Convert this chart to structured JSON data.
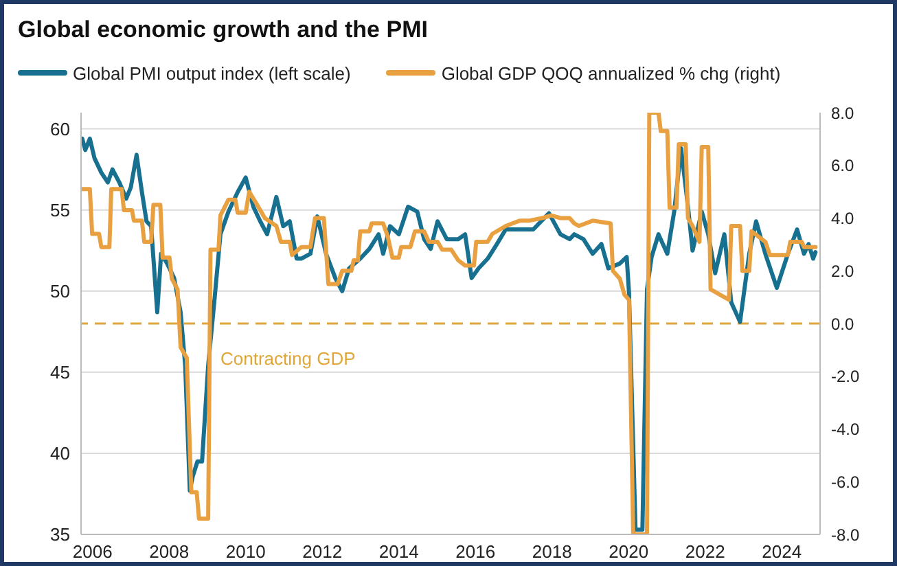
{
  "chart_data": {
    "type": "line",
    "title": "Global economic growth and the PMI",
    "legend": "top",
    "grid": "y",
    "marker": "none",
    "line_style": "solid",
    "xlim": [
      2005.7,
      2025
    ],
    "xticks": [
      2006,
      2008,
      2010,
      2012,
      2014,
      2016,
      2018,
      2020,
      2022,
      2024
    ],
    "ylim": [
      35,
      61
    ],
    "yticks": [
      35,
      40,
      45,
      50,
      55,
      60
    ],
    "y2lim": [
      -8,
      8
    ],
    "y2ticks": [
      {
        "value": -8,
        "label": "-8.0"
      },
      {
        "value": -6,
        "label": "-6.0"
      },
      {
        "value": -4,
        "label": "-4.0"
      },
      {
        "value": -2,
        "label": "-2.0"
      },
      {
        "value": 0,
        "label": "0.0"
      },
      {
        "value": 2,
        "label": "2.0"
      },
      {
        "value": 4,
        "label": "4.0"
      },
      {
        "value": 6,
        "label": "6.0"
      },
      {
        "value": 8,
        "label": "8.0"
      }
    ],
    "ref_lines": [
      {
        "axis": "y2",
        "value": 0,
        "label": "Contracting GDP",
        "color": "#e0a63a",
        "line_style": "dashed"
      }
    ],
    "series": [
      {
        "name": "Global PMI output index (left scale)",
        "color": "#17708f",
        "x": [
          2005.73,
          2005.81,
          2005.93,
          2006.05,
          2006.23,
          2006.4,
          2006.52,
          2006.7,
          2006.88,
          2007.0,
          2007.15,
          2007.29,
          2007.41,
          2007.53,
          2007.69,
          2007.79,
          2007.95,
          2008.13,
          2008.3,
          2008.42,
          2008.54,
          2008.62,
          2008.74,
          2008.86,
          2009.02,
          2009.19,
          2009.34,
          2009.55,
          2009.79,
          2010.0,
          2010.2,
          2010.38,
          2010.56,
          2010.8,
          2010.98,
          2011.15,
          2011.33,
          2011.45,
          2011.69,
          2011.87,
          2012.1,
          2012.34,
          2012.52,
          2012.7,
          2012.99,
          2013.23,
          2013.47,
          2013.59,
          2013.77,
          2014.0,
          2014.24,
          2014.48,
          2014.66,
          2014.83,
          2015.01,
          2015.25,
          2015.55,
          2015.73,
          2015.9,
          2016.08,
          2016.32,
          2016.56,
          2016.79,
          2017.15,
          2017.51,
          2017.92,
          2018.22,
          2018.46,
          2018.58,
          2018.82,
          2019.06,
          2019.29,
          2019.47,
          2019.77,
          2019.95,
          2020.01,
          2020.18,
          2020.36,
          2020.48,
          2020.6,
          2020.78,
          2021.01,
          2021.19,
          2021.37,
          2021.55,
          2021.67,
          2021.79,
          2021.91,
          2022.08,
          2022.26,
          2022.5,
          2022.68,
          2022.91,
          2023.15,
          2023.33,
          2023.57,
          2023.87,
          2024.16,
          2024.4,
          2024.58,
          2024.7,
          2024.82,
          2024.88
        ],
        "values": [
          59.4,
          58.7,
          59.4,
          58.2,
          57.3,
          56.7,
          57.5,
          56.7,
          55.7,
          56.4,
          58.4,
          56.1,
          54.3,
          54.0,
          48.7,
          52.3,
          51.7,
          50.8,
          48.7,
          45.4,
          37.7,
          38.6,
          39.5,
          39.5,
          45.4,
          49.6,
          53.5,
          54.9,
          56.1,
          57.0,
          55.2,
          54.3,
          53.5,
          55.8,
          54.0,
          54.3,
          52.0,
          52.0,
          52.3,
          54.6,
          52.3,
          50.8,
          50.0,
          51.4,
          52.0,
          52.6,
          53.5,
          52.3,
          54.0,
          53.5,
          55.2,
          54.9,
          53.2,
          52.6,
          54.3,
          53.2,
          53.2,
          53.5,
          50.8,
          51.4,
          52.0,
          52.9,
          53.8,
          53.8,
          53.8,
          54.8,
          53.5,
          53.2,
          53.5,
          53.2,
          52.3,
          52.9,
          51.4,
          51.7,
          52.1,
          49.9,
          35.3,
          35.3,
          50.1,
          52.1,
          53.5,
          52.3,
          54.9,
          58.8,
          55.2,
          52.5,
          53.7,
          54.9,
          53.5,
          51.1,
          53.5,
          49.3,
          48.1,
          52.3,
          54.3,
          52.3,
          50.2,
          52.3,
          53.8,
          52.3,
          52.9,
          52.0,
          52.4
        ]
      },
      {
        "name": "Global GDP QOQ annualized % chg (right)",
        "color": "#e8a040",
        "axis": "y2",
        "x": [
          2005.73,
          2005.93,
          2005.99,
          2006.17,
          2006.23,
          2006.44,
          2006.49,
          2006.76,
          2006.82,
          2007.03,
          2007.08,
          2007.29,
          2007.35,
          2007.53,
          2007.59,
          2007.77,
          2007.83,
          2008.01,
          2008.07,
          2008.22,
          2008.3,
          2008.46,
          2008.58,
          2008.72,
          2008.78,
          2009.02,
          2009.08,
          2009.29,
          2009.34,
          2009.55,
          2009.73,
          2009.79,
          2010.0,
          2010.09,
          2010.26,
          2010.5,
          2010.8,
          2010.92,
          2011.15,
          2011.21,
          2011.45,
          2011.69,
          2011.81,
          2012.04,
          2012.16,
          2012.4,
          2012.52,
          2012.76,
          2012.82,
          2012.93,
          2012.99,
          2013.23,
          2013.29,
          2013.59,
          2013.71,
          2013.83,
          2014.0,
          2014.06,
          2014.3,
          2014.42,
          2014.66,
          2014.78,
          2015.01,
          2015.13,
          2015.37,
          2015.55,
          2015.73,
          2015.96,
          2016.02,
          2016.32,
          2016.44,
          2016.79,
          2017.15,
          2017.39,
          2017.74,
          2017.98,
          2018.22,
          2018.46,
          2018.58,
          2018.7,
          2019.06,
          2019.53,
          2019.59,
          2019.77,
          2019.89,
          2020.01,
          2020.12,
          2020.48,
          2020.54,
          2020.78,
          2020.84,
          2021.01,
          2021.07,
          2021.25,
          2021.31,
          2021.49,
          2021.55,
          2021.67,
          2021.85,
          2021.91,
          2022.08,
          2022.14,
          2022.38,
          2022.62,
          2022.68,
          2022.91,
          2022.97,
          2023.15,
          2023.21,
          2023.57,
          2023.69,
          2024.16,
          2024.22,
          2024.52,
          2024.58,
          2024.88
        ],
        "values": [
          5.1,
          5.1,
          3.4,
          3.4,
          2.9,
          2.9,
          5.1,
          5.1,
          4.3,
          4.3,
          3.9,
          3.9,
          3.1,
          3.1,
          4.5,
          4.5,
          2.5,
          2.5,
          1.7,
          1.3,
          -0.9,
          -1.3,
          -6.4,
          -6.4,
          -7.4,
          -7.4,
          2.8,
          2.8,
          4.1,
          4.7,
          4.7,
          4.2,
          4.2,
          5.0,
          4.6,
          4.0,
          3.7,
          3.1,
          3.1,
          2.6,
          2.9,
          2.9,
          4.0,
          4.0,
          1.5,
          1.5,
          2.0,
          2.0,
          2.4,
          2.4,
          3.5,
          3.5,
          3.8,
          3.8,
          3.3,
          2.5,
          2.5,
          2.9,
          2.9,
          3.5,
          3.5,
          3.1,
          3.1,
          2.8,
          2.8,
          2.4,
          2.2,
          2.2,
          3.1,
          3.1,
          3.4,
          3.7,
          3.9,
          3.9,
          4.0,
          4.1,
          4.0,
          4.0,
          3.8,
          3.7,
          3.9,
          3.8,
          2.0,
          1.7,
          1.1,
          0.9,
          -8,
          -8,
          8,
          8,
          7.3,
          7.3,
          4.4,
          4.4,
          6.8,
          6.8,
          4.0,
          3.7,
          3.1,
          6.7,
          6.7,
          1.3,
          1.1,
          0.9,
          3.7,
          3.7,
          2.0,
          2.0,
          3.5,
          3.1,
          2.6,
          2.6,
          3.1,
          3.1,
          2.9,
          2.9
        ]
      }
    ]
  }
}
